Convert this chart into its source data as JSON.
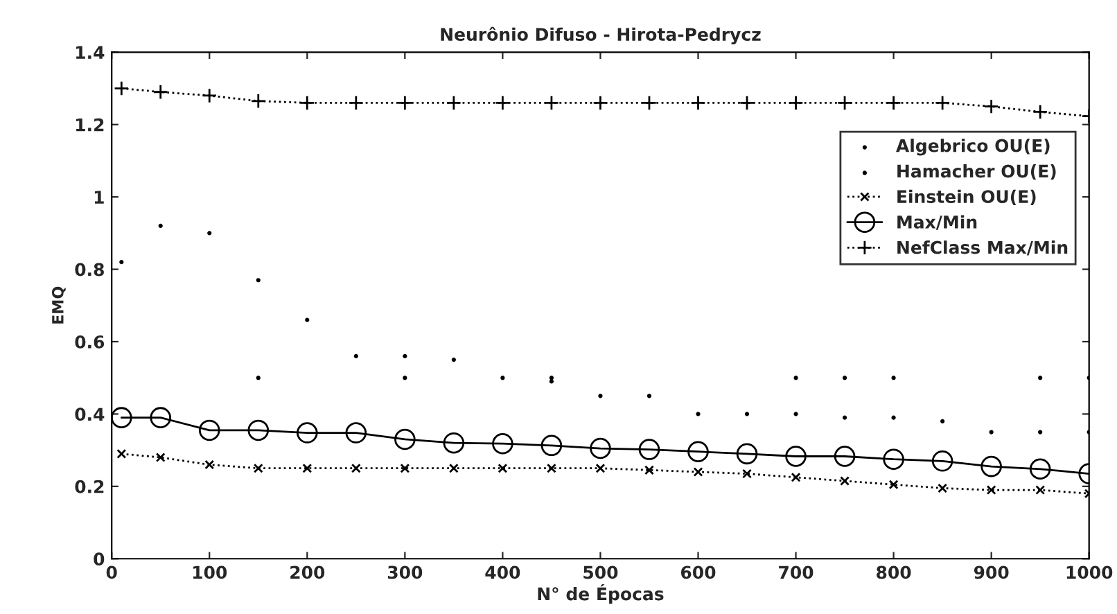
{
  "chart_data": {
    "type": "line",
    "title": "Neurônio Difuso - Hirota-Pedrycz",
    "xlabel": "N° de Épocas",
    "ylabel": "EMQ",
    "x": [
      10,
      50,
      100,
      150,
      200,
      250,
      300,
      350,
      400,
      450,
      500,
      550,
      600,
      650,
      700,
      750,
      800,
      850,
      900,
      950,
      1000
    ],
    "series": [
      {
        "name": "Algebrico OU(E)",
        "type": "scatter",
        "color": "#000000",
        "marker": "circle",
        "values": [
          0.82,
          0.92,
          0.9,
          0.77,
          0.66,
          0.56,
          0.56,
          0.55,
          0.5,
          0.49,
          0.45,
          0.45,
          0.4,
          0.4,
          0.4,
          0.39,
          0.39,
          0.38,
          0.35,
          0.35,
          0.35
        ]
      },
      {
        "name": "Hamacher OU(E)",
        "type": "scatter",
        "color": "#000000",
        "marker": "circle",
        "values": [
          null,
          null,
          null,
          0.5,
          null,
          null,
          0.5,
          null,
          null,
          0.5,
          null,
          null,
          null,
          null,
          0.5,
          0.5,
          0.5,
          null,
          null,
          0.5,
          0.5
        ]
      },
      {
        "name": "Einstein OU(E)",
        "color": "#000000",
        "marker": "cross",
        "line_style": "dotted",
        "values": [
          0.29,
          0.28,
          0.26,
          0.25,
          0.25,
          0.25,
          0.25,
          0.25,
          0.25,
          0.25,
          0.25,
          0.245,
          0.24,
          0.235,
          0.225,
          0.215,
          0.205,
          0.195,
          0.19,
          0.19,
          0.18
        ]
      },
      {
        "name": "Max/Min",
        "color": "#000000",
        "marker": "circle",
        "line_style": "solid",
        "values": [
          0.39,
          0.39,
          0.355,
          0.355,
          0.348,
          0.348,
          0.33,
          0.32,
          0.318,
          0.313,
          0.305,
          0.302,
          0.296,
          0.29,
          0.283,
          0.283,
          0.275,
          0.27,
          0.255,
          0.248,
          0.235
        ]
      },
      {
        "name": "NefClass Max/Min",
        "color": "#000000",
        "marker": "plus",
        "line_style": "dotted",
        "values": [
          1.3,
          1.29,
          1.28,
          1.265,
          1.26,
          1.26,
          1.26,
          1.26,
          1.26,
          1.26,
          1.26,
          1.26,
          1.26,
          1.26,
          1.26,
          1.26,
          1.26,
          1.26,
          1.25,
          1.235,
          1.223
        ]
      }
    ],
    "xlim": [
      0,
      1000
    ],
    "ylim": [
      0,
      1.4
    ],
    "xticks": [
      0,
      100,
      200,
      300,
      400,
      500,
      600,
      700,
      800,
      900,
      1000
    ],
    "yticks": [
      0,
      0.2,
      0.4,
      0.6,
      0.8,
      1,
      1.2,
      1.4
    ],
    "grid": false,
    "legend": "top right"
  }
}
